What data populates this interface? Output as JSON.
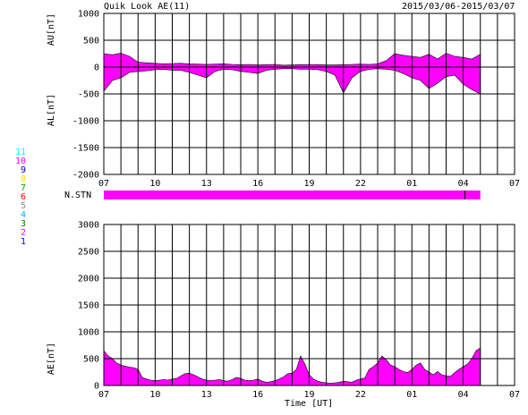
{
  "header": {
    "title": "Quik Look AE(11)",
    "date_range": "2015/03/06-2015/03/07"
  },
  "colors": {
    "fill": "#ff00ff",
    "grid": "#000000",
    "stations": [
      "#0000ff",
      "#ff00ff",
      "#008000",
      "#00aaff",
      "#888888",
      "#ff0000",
      "#00aa00",
      "#ffdd00",
      "#0000aa",
      "#ff00ff",
      "#00ffff"
    ]
  },
  "station_numbers": [
    "1",
    "2",
    "3",
    "4",
    "5",
    "6",
    "7",
    "8",
    "9",
    "10",
    "11"
  ],
  "nstn_label": "N.STN",
  "x_ticks": [
    "07",
    "10",
    "13",
    "16",
    "19",
    "22",
    "01",
    "04",
    "07"
  ],
  "x_title": "Time [UT]",
  "chart_data": [
    {
      "type": "area",
      "panel": "AU/AL",
      "ylabel_top": "AU[nT]",
      "ylabel_bottom": "AL[nT]",
      "ylim": [
        -2000,
        1000
      ],
      "y_ticks": [
        "1000",
        "500",
        "0",
        "-500",
        "-1000",
        "-1500",
        "-2000"
      ],
      "xlim": [
        0,
        24
      ],
      "grid": true,
      "series": [
        {
          "values_hours": [
            0,
            0.5,
            1,
            1.5,
            2,
            2.5,
            3,
            3.5,
            4,
            4.5,
            5,
            5.5,
            6,
            6.5,
            7,
            7.5,
            8,
            8.5,
            9,
            9.5,
            10,
            10.5,
            11,
            11.5,
            12,
            12.5,
            13,
            13.5,
            14,
            14.5,
            15,
            15.5,
            16,
            16.5,
            17,
            17.5,
            18,
            18.5,
            19,
            19.5,
            20,
            20.5,
            21,
            21.5,
            22
          ],
          "au": [
            250,
            230,
            260,
            200,
            90,
            80,
            70,
            60,
            65,
            70,
            60,
            55,
            50,
            55,
            60,
            50,
            45,
            50,
            40,
            45,
            50,
            35,
            40,
            45,
            50,
            45,
            40,
            40,
            45,
            50,
            55,
            50,
            60,
            120,
            250,
            220,
            200,
            180,
            240,
            150,
            260,
            200,
            180,
            150,
            240
          ],
          "al": [
            -450,
            -250,
            -200,
            -100,
            -80,
            -70,
            -50,
            -40,
            -60,
            -60,
            -100,
            -150,
            -200,
            -80,
            -40,
            -50,
            -80,
            -100,
            -120,
            -60,
            -40,
            -30,
            -30,
            -40,
            -40,
            -50,
            -80,
            -150,
            -480,
            -200,
            -80,
            -40,
            -30,
            -40,
            -60,
            -120,
            -200,
            -250,
            -400,
            -300,
            -180,
            -150,
            -320,
            -420,
            -500
          ]
        }
      ]
    },
    {
      "type": "area",
      "panel": "AE",
      "ylabel": "AE[nT]",
      "ylim": [
        0,
        3000
      ],
      "y_ticks": [
        "3000",
        "2500",
        "2000",
        "1500",
        "1000",
        "500",
        "0"
      ],
      "xlim": [
        0,
        24
      ],
      "grid": true,
      "series": [
        {
          "x_hours": [
            0,
            0.25,
            0.5,
            0.75,
            1,
            1.25,
            1.5,
            1.75,
            2,
            2.25,
            2.5,
            2.75,
            3,
            3.25,
            3.5,
            3.75,
            4,
            4.25,
            4.5,
            4.75,
            5,
            5.25,
            5.5,
            5.75,
            6,
            6.25,
            6.5,
            6.75,
            7,
            7.25,
            7.5,
            7.75,
            8,
            8.25,
            8.5,
            8.75,
            9,
            9.25,
            9.5,
            9.75,
            10,
            10.25,
            10.5,
            10.75,
            11,
            11.25,
            11.5,
            11.75,
            12,
            12.25,
            12.5,
            12.75,
            13,
            13.25,
            13.5,
            13.75,
            14,
            14.25,
            14.5,
            14.75,
            15,
            15.25,
            15.5,
            15.75,
            16,
            16.25,
            16.5,
            16.75,
            17,
            17.25,
            17.5,
            17.75,
            18,
            18.25,
            18.5,
            18.75,
            19,
            19.25,
            19.5,
            19.75,
            20,
            20.25,
            20.5,
            20.75,
            21,
            21.25,
            21.5,
            21.75,
            22
          ],
          "values": [
            650,
            550,
            500,
            420,
            380,
            360,
            340,
            330,
            300,
            150,
            120,
            100,
            90,
            100,
            110,
            100,
            120,
            130,
            180,
            220,
            230,
            200,
            160,
            120,
            100,
            90,
            100,
            110,
            90,
            80,
            110,
            150,
            130,
            100,
            90,
            100,
            120,
            80,
            60,
            70,
            90,
            120,
            160,
            220,
            230,
            300,
            550,
            400,
            200,
            120,
            80,
            60,
            50,
            40,
            50,
            60,
            80,
            70,
            60,
            100,
            120,
            140,
            300,
            350,
            420,
            550,
            480,
            380,
            350,
            300,
            260,
            240,
            300,
            380,
            420,
            300,
            250,
            200,
            260,
            200,
            180,
            170,
            240,
            300,
            350,
            400,
            500,
            650,
            700
          ]
        }
      ]
    }
  ]
}
